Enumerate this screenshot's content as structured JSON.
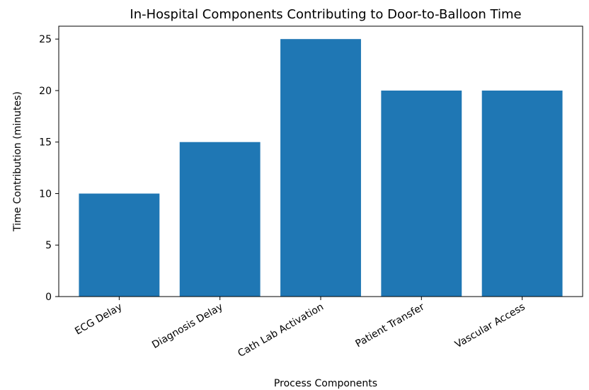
{
  "chart_data": {
    "type": "bar",
    "title": "In-Hospital Components Contributing to Door-to-Balloon Time",
    "xlabel": "Process Components",
    "ylabel": "Time Contribution (minutes)",
    "categories": [
      "ECG Delay",
      "Diagnosis Delay",
      "Cath Lab Activation",
      "Patient Transfer",
      "Vascular Access"
    ],
    "values": [
      10,
      15,
      25,
      20,
      20
    ],
    "ylim": [
      0,
      26.25
    ],
    "yticks": [
      0,
      5,
      10,
      15,
      20,
      25
    ],
    "ytick_labels": [
      "0",
      "5",
      "10",
      "15",
      "20",
      "25"
    ],
    "bar_color": "#1f77b4",
    "grid": false,
    "legend": false
  }
}
